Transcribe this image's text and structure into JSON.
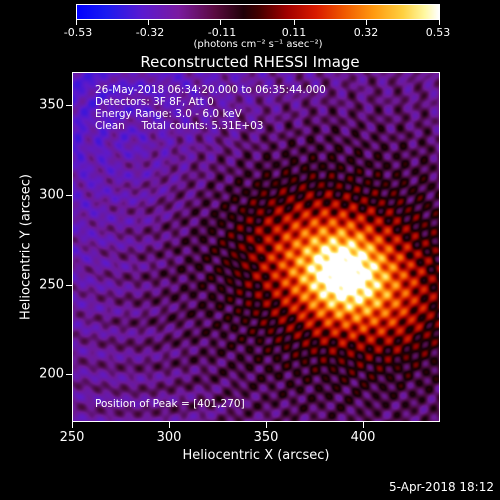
{
  "colorbar": {
    "tick_labels": [
      "-0.53",
      "-0.32",
      "-0.11",
      "0.11",
      "0.32",
      "0.53"
    ],
    "units": "(photons cm⁻² s⁻¹ asec⁻²)"
  },
  "title": "Reconstructed RHESSI Image",
  "annotations": {
    "line1": "26-May-2018 06:34:20.000 to 06:35:44.000",
    "line2": "Detectors: 3F 8F, Att 0",
    "line3": "Energy Range: 3.0 - 6.0 keV",
    "line4": "Clean     Total counts: 5.31E+03",
    "peak": "Position of Peak = [401,270]"
  },
  "axes": {
    "xlabel": "Heliocentric X (arcsec)",
    "ylabel": "Heliocentric Y (arcsec)",
    "x_ticks": [
      "250",
      "300",
      "350",
      "400"
    ],
    "y_ticks": [
      "200",
      "250",
      "300",
      "350"
    ],
    "x_range": [
      250,
      440
    ],
    "y_range": [
      172,
      372
    ]
  },
  "timestamp": "5-Apr-2018 18:12",
  "colors": {
    "background": "#000000",
    "text": "#ffffff"
  }
}
